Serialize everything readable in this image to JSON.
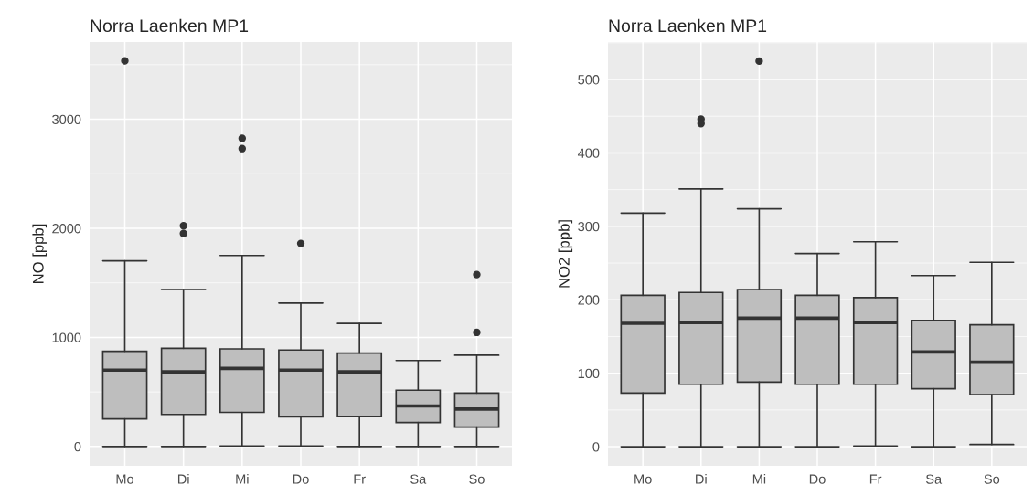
{
  "chart_data": [
    {
      "type": "box",
      "title": "Norra Laenken MP1",
      "ylabel": "NO [ppb]",
      "categories": [
        "Mo",
        "Di",
        "Mi",
        "Do",
        "Fr",
        "Sa",
        "So"
      ],
      "color": "#bebebe",
      "ylim": [
        -177,
        3708
      ],
      "yticks": [
        0,
        1000,
        2000,
        3000
      ],
      "grid": true,
      "boxes": [
        {
          "low": 0,
          "q1": 253,
          "median": 700,
          "q3": 873,
          "high": 1702,
          "outliers": [
            3535
          ]
        },
        {
          "low": 0,
          "q1": 294,
          "median": 684,
          "q3": 900,
          "high": 1438,
          "outliers": [
            2023,
            1952
          ]
        },
        {
          "low": 5,
          "q1": 313,
          "median": 716,
          "q3": 895,
          "high": 1751,
          "outliers": [
            2825,
            2731
          ]
        },
        {
          "low": 5,
          "q1": 272,
          "median": 700,
          "q3": 884,
          "high": 1315,
          "outliers": [
            1861
          ]
        },
        {
          "low": 0,
          "q1": 274,
          "median": 684,
          "q3": 856,
          "high": 1128
        },
        {
          "low": 0,
          "q1": 220,
          "median": 371,
          "q3": 516,
          "high": 788
        },
        {
          "low": 0,
          "q1": 178,
          "median": 343,
          "q3": 489,
          "high": 837,
          "outliers": [
            1576,
            1046
          ]
        }
      ]
    },
    {
      "type": "box",
      "title": "Norra Laenken MP1",
      "ylabel": "NO2 [ppb]",
      "categories": [
        "Mo",
        "Di",
        "Mi",
        "Do",
        "Fr",
        "Sa",
        "So"
      ],
      "color": "#bebebe",
      "ylim": [
        -26,
        551
      ],
      "yticks": [
        0,
        100,
        200,
        300,
        400,
        500
      ],
      "grid": true,
      "boxes": [
        {
          "low": 0,
          "q1": 73,
          "median": 168,
          "q3": 206,
          "high": 318
        },
        {
          "low": 0,
          "q1": 85,
          "median": 169,
          "q3": 210,
          "high": 351,
          "outliers": [
            446,
            440
          ]
        },
        {
          "low": 0,
          "q1": 88,
          "median": 175,
          "q3": 214,
          "high": 324,
          "outliers": [
            525
          ]
        },
        {
          "low": 0,
          "q1": 85,
          "median": 175,
          "q3": 206,
          "high": 263
        },
        {
          "low": 1,
          "q1": 85,
          "median": 169,
          "q3": 203,
          "high": 279
        },
        {
          "low": 0,
          "q1": 79,
          "median": 129,
          "q3": 172,
          "high": 233
        },
        {
          "low": 3,
          "q1": 71,
          "median": 115,
          "q3": 166,
          "high": 251
        }
      ]
    }
  ]
}
